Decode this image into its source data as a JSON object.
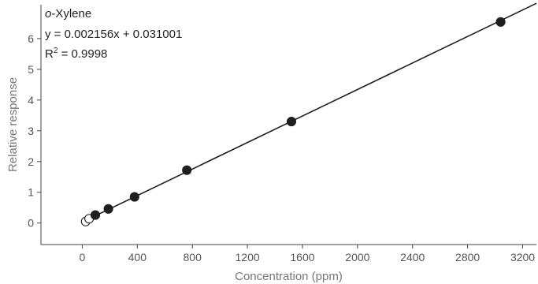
{
  "chart_data": {
    "type": "scatter",
    "compound_prefix": "o",
    "compound_rest": "-Xylene",
    "equation": "y = 0.002156x + 0.031001",
    "r2_label": "R",
    "r2_sup": "2",
    "r2_value": " = 0.9998",
    "xlabel": "Concentration (ppm)",
    "ylabel": "Relative response",
    "xlim": [
      -300,
      3300
    ],
    "ylim": [
      -0.7,
      7.1
    ],
    "xticks": [
      0,
      400,
      800,
      1200,
      1600,
      2000,
      2400,
      2800,
      3200
    ],
    "yticks": [
      0,
      1,
      2,
      3,
      4,
      5,
      6
    ],
    "fit": {
      "slope": 0.002156,
      "intercept": 0.031001,
      "x_range": [
        0,
        3300
      ]
    },
    "series": [
      {
        "filled": false,
        "x": [
          25,
          50
        ],
        "y": [
          0.05,
          0.14
        ]
      },
      {
        "filled": true,
        "x": [
          95,
          190,
          380,
          760,
          1520,
          3040
        ],
        "y": [
          0.26,
          0.46,
          0.85,
          1.72,
          3.3,
          6.54
        ]
      }
    ],
    "grid": false,
    "legend": "none",
    "colors": {
      "point": "#1f1f1f",
      "line": "#1f1f1f",
      "axis": "#444444"
    }
  }
}
